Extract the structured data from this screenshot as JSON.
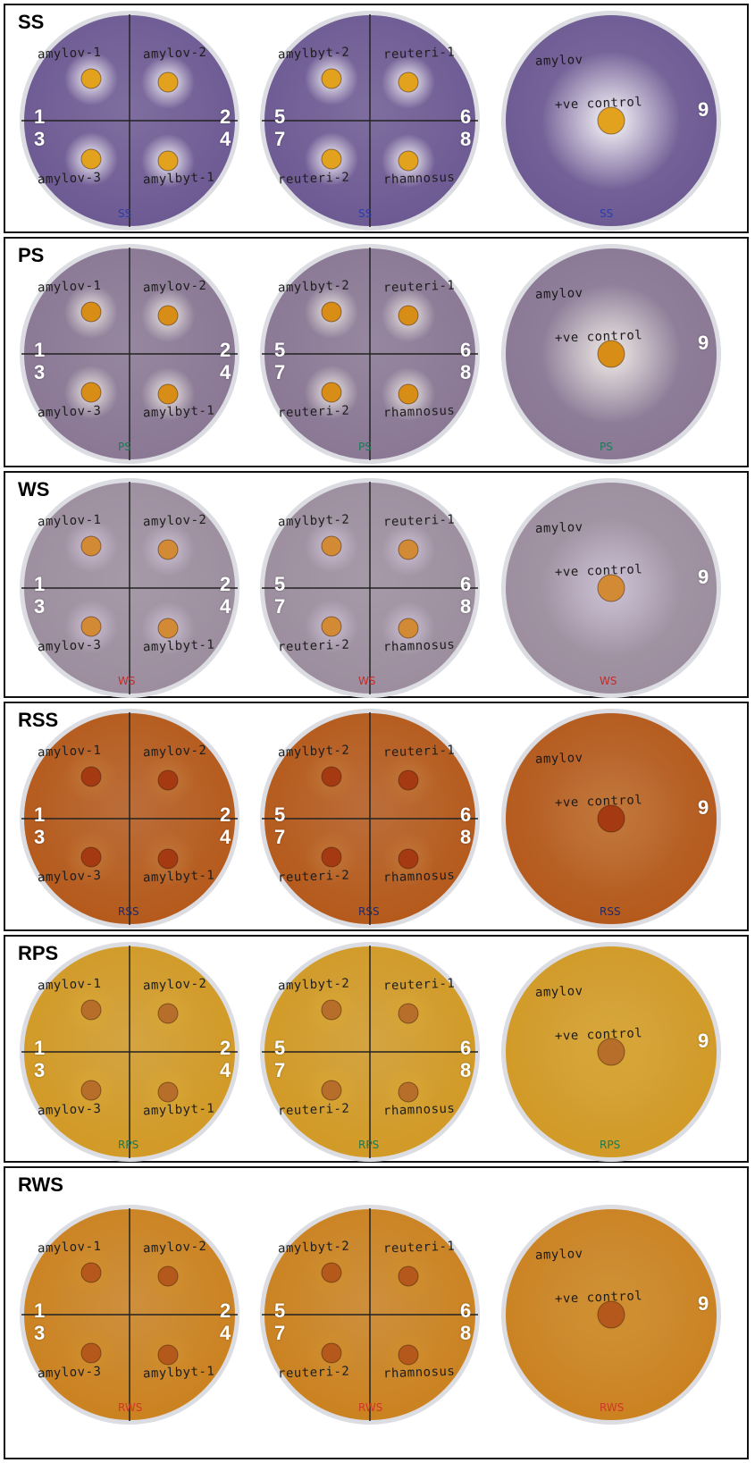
{
  "panels": [
    {
      "label": "SS",
      "bg": "#6e5a93",
      "zone": "#ffffff",
      "colony": "#e2a21e",
      "ink": "#1d1d1d",
      "stamp": "SS",
      "stampColor": "#2b3ea8",
      "plate1": {
        "labels": [
          "amylov-1",
          "amylov-2",
          "amylov-3",
          "amylbyt-1"
        ],
        "numbers": [
          "1",
          "2",
          "3",
          "4"
        ]
      },
      "plate2": {
        "labels": [
          "amylbyt-2",
          "reuteri-1",
          "reuteri-2",
          "rhamnosus"
        ],
        "numbers": [
          "5",
          "6",
          "7",
          "8"
        ]
      },
      "plate3": {
        "labels": [
          "amylov",
          "+ve control"
        ],
        "number": "9"
      }
    },
    {
      "label": "PS",
      "bg": "#8a7894",
      "zone": "#f4f0ea",
      "colony": "#d88d17",
      "ink": "#1d1d1d",
      "stamp": "PS",
      "stampColor": "#1c7a55",
      "plate1": {
        "labels": [
          "amylov-1",
          "amylov-2",
          "amylov-3",
          "amylbyt-1"
        ],
        "numbers": [
          "1",
          "2",
          "3",
          "4"
        ]
      },
      "plate2": {
        "labels": [
          "amylbyt-2",
          "reuteri-1",
          "reuteri-2",
          "rhamnosus"
        ],
        "numbers": [
          "5",
          "6",
          "7",
          "8"
        ]
      },
      "plate3": {
        "labels": [
          "amylov",
          "+ve control"
        ],
        "number": "9"
      }
    },
    {
      "label": "WS",
      "bg": "#9c8e9e",
      "zone": "#cfc4d8",
      "colony": "#d38a35",
      "ink": "#1d1d1d",
      "stamp": "WS",
      "stampColor": "#c32c2c",
      "plate1": {
        "labels": [
          "amylov-1",
          "amylov-2",
          "amylov-3",
          "amylbyt-1"
        ],
        "numbers": [
          "1",
          "2",
          "3",
          "4"
        ]
      },
      "plate2": {
        "labels": [
          "amylbyt-2",
          "reuteri-1",
          "reuteri-2",
          "rhamnosus"
        ],
        "numbers": [
          "5",
          "6",
          "7",
          "8"
        ]
      },
      "plate3": {
        "labels": [
          "amylov",
          "+ve control"
        ],
        "number": "9"
      }
    },
    {
      "label": "RSS",
      "bg": "#b55a1c",
      "zone": "#c27737",
      "colony": "#a53a12",
      "ink": "#1d1d1d",
      "stamp": "RSS",
      "stampColor": "#1f2a6a",
      "plate1": {
        "labels": [
          "amylov-1",
          "amylov-2",
          "amylov-3",
          "amylbyt-1"
        ],
        "numbers": [
          "1",
          "2",
          "3",
          "4"
        ]
      },
      "plate2": {
        "labels": [
          "amylbyt-2",
          "reuteri-1",
          "reuteri-2",
          "rhamnosus"
        ],
        "numbers": [
          "5",
          "6",
          "7",
          "8"
        ]
      },
      "plate3": {
        "labels": [
          "amylov",
          "+ve control"
        ],
        "number": "9"
      }
    },
    {
      "label": "RPS",
      "bg": "#d29a26",
      "zone": "#d8a634",
      "colony": "#b66e2a",
      "ink": "#1d1d1d",
      "stamp": "RPS",
      "stampColor": "#1d7a50",
      "plate1": {
        "labels": [
          "amylov-1",
          "amylov-2",
          "amylov-3",
          "amylbyt-1"
        ],
        "numbers": [
          "1",
          "2",
          "3",
          "4"
        ]
      },
      "plate2": {
        "labels": [
          "amylbyt-2",
          "reuteri-1",
          "reuteri-2",
          "rhamnosus"
        ],
        "numbers": [
          "5",
          "6",
          "7",
          "8"
        ]
      },
      "plate3": {
        "labels": [
          "amylov",
          "+ve control"
        ],
        "number": "9"
      }
    },
    {
      "label": "RWS",
      "bg": "#cb8220",
      "zone": "#d08f2c",
      "colony": "#b4581c",
      "ink": "#1d1d1d",
      "stamp": "RWS",
      "stampColor": "#d2352a",
      "plate1": {
        "labels": [
          "amylov-1",
          "amylov-2",
          "amylov-3",
          "amylbyt-1"
        ],
        "numbers": [
          "1",
          "2",
          "3",
          "4"
        ]
      },
      "plate2": {
        "labels": [
          "amylbyt-2",
          "reuteri-1",
          "reuteri-2",
          "rhamnosus"
        ],
        "numbers": [
          "5",
          "6",
          "7",
          "8"
        ]
      },
      "plate3": {
        "labels": [
          "amylov",
          "+ve control"
        ],
        "number": "9"
      }
    }
  ]
}
